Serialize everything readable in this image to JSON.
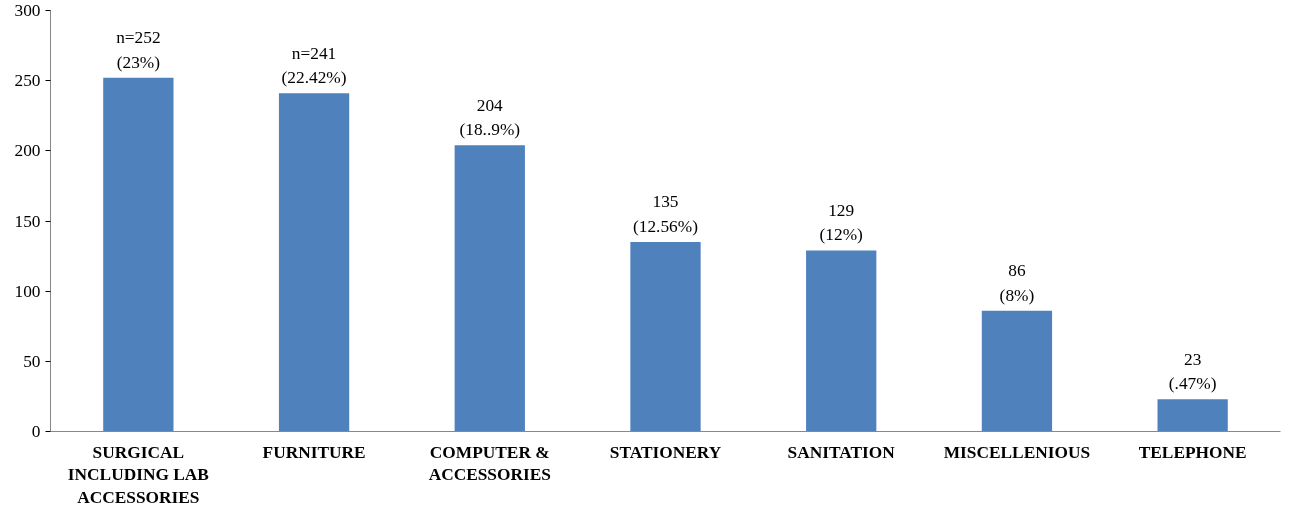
{
  "chart_data": {
    "type": "bar",
    "categories": [
      "SURGICAL INCLUDING LAB ACCESSORIES",
      "FURNITURE",
      "COMPUTER & ACCESSORIES",
      "STATIONERY",
      "SANITATION",
      "MISCELLENIOUS",
      "TELEPHONE"
    ],
    "values": [
      252,
      241,
      204,
      135,
      129,
      86,
      23
    ],
    "value_labels": [
      "n=252\n(23%)",
      "n=241\n(22.42%)",
      "204\n(18..9%)",
      "135\n(12.56%)",
      "129\n(12%)",
      "86\n(8%)",
      "23\n(.47%)"
    ],
    "color": "#4f81bd",
    "ylim": [
      0,
      300
    ],
    "yticks": [
      0,
      50,
      100,
      150,
      200,
      250,
      300
    ],
    "grid": false
  }
}
